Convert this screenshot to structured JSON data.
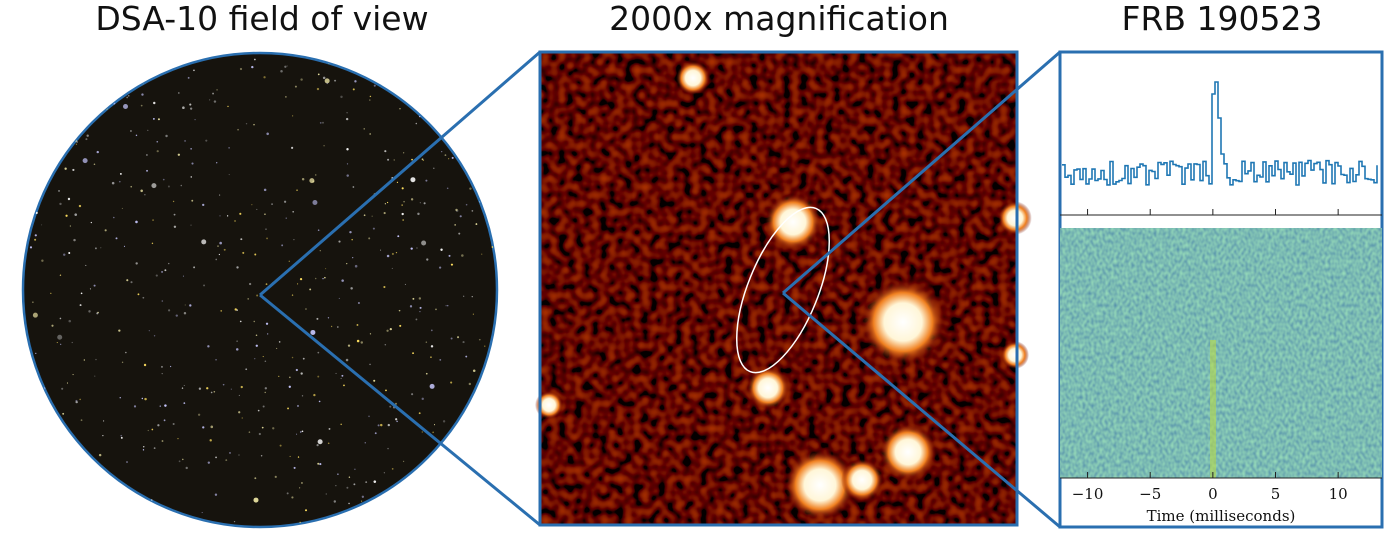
{
  "panels": [
    {
      "title": "DSA-10 field of view"
    },
    {
      "title": "2000x magnification"
    },
    {
      "title": "FRB 190523"
    }
  ],
  "plot": {
    "xlabel": "Time (milliseconds)",
    "xlim": [
      -12.2,
      13.5
    ],
    "xticks": [
      {
        "value": -10,
        "label": "−10"
      },
      {
        "value": -5,
        "label": "−5"
      },
      0,
      5,
      10
    ]
  }
}
